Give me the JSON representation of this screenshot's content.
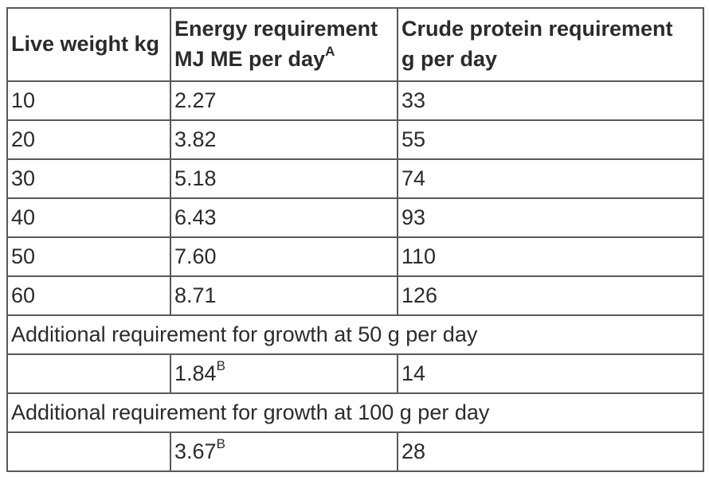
{
  "table": {
    "headers": [
      {
        "text": "Live weight kg"
      },
      {
        "line1": "Energy requirement",
        "line2": "MJ ME per day",
        "sup": "A"
      },
      {
        "line1": "Crude protein requirement",
        "line2": "g per day"
      }
    ],
    "rows": [
      {
        "weight": "10",
        "energy": "2.27",
        "protein": "33"
      },
      {
        "weight": "20",
        "energy": "3.82",
        "protein": "55"
      },
      {
        "weight": "30",
        "energy": "5.18",
        "protein": "74"
      },
      {
        "weight": "40",
        "energy": "6.43",
        "protein": "93"
      },
      {
        "weight": "50",
        "energy": "7.60",
        "protein": "110"
      },
      {
        "weight": "60",
        "energy": "8.71",
        "protein": "126"
      }
    ],
    "sections": [
      {
        "caption": "Additional requirement for growth at 50 g per day",
        "energy": "1.84",
        "energy_sup": "B",
        "protein": "14"
      },
      {
        "caption": "Additional requirement for growth at 100 g per day",
        "energy": "3.67",
        "energy_sup": "B",
        "protein": "28"
      }
    ],
    "colors": {
      "border": "#595959",
      "text": "#2b2b2b",
      "background": "#ffffff"
    }
  }
}
